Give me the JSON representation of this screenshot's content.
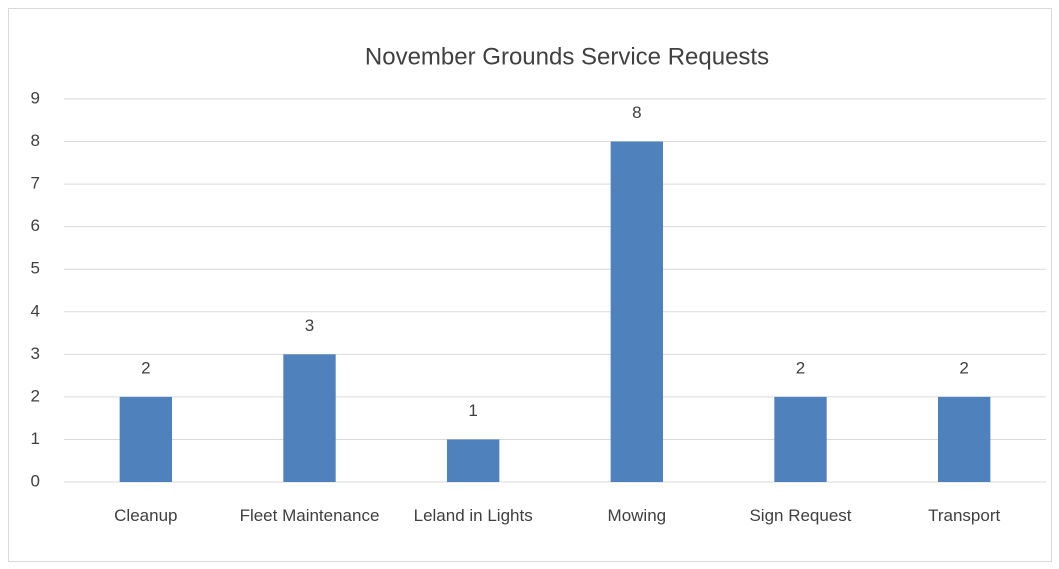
{
  "chart_data": {
    "type": "bar",
    "title": "November Grounds Service Requests",
    "categories": [
      "Cleanup",
      "Fleet Maintenance",
      "Leland in Lights",
      "Mowing",
      "Sign Request",
      "Transport"
    ],
    "values": [
      2,
      3,
      1,
      8,
      2,
      2
    ],
    "color": "#4f81bd",
    "ylim": [
      0,
      9
    ],
    "yticks": [
      0,
      1,
      2,
      3,
      4,
      5,
      6,
      7,
      8,
      9
    ],
    "grid": true
  }
}
